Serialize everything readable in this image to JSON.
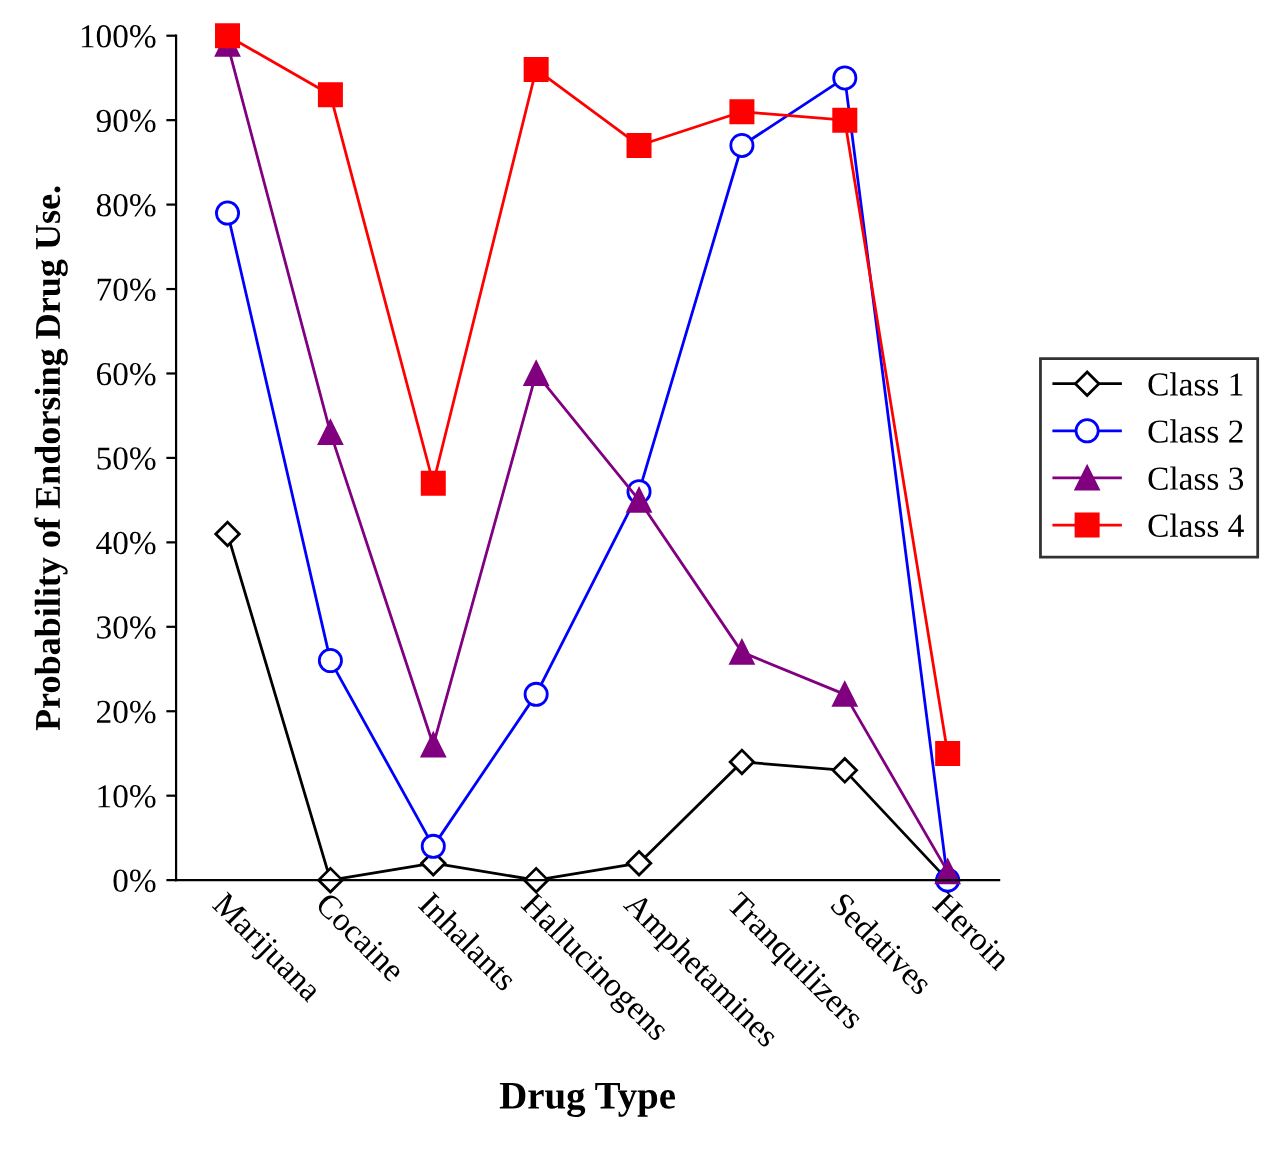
{
  "chart_data": {
    "type": "line",
    "xlabel": "Drug Type",
    "ylabel": "Probability of Endorsing Drug Use.",
    "categories": [
      "Marijuana",
      "Cocaine",
      "Inhalants",
      "Hallucinogens",
      "Amphetamines",
      "Tranquilizers",
      "Sedatives",
      "Heroin"
    ],
    "series": [
      {
        "name": "Class 1",
        "color": "#000000",
        "marker": "diamond",
        "values": [
          41,
          0,
          2,
          0,
          2,
          14,
          13,
          0
        ]
      },
      {
        "name": "Class 2",
        "color": "#0000ff",
        "marker": "circle",
        "values": [
          79,
          26,
          4,
          22,
          46,
          87,
          95,
          0
        ]
      },
      {
        "name": "Class 3",
        "color": "#800080",
        "marker": "triangle",
        "values": [
          99,
          53,
          16,
          60,
          45,
          27,
          22,
          1
        ]
      },
      {
        "name": "Class 4",
        "color": "#ff0000",
        "marker": "square",
        "values": [
          100,
          93,
          47,
          96,
          87,
          91,
          90,
          15
        ]
      }
    ],
    "ylim": [
      0,
      100
    ],
    "yticks": [
      {
        "value": 0,
        "label": "0%"
      },
      {
        "value": 10,
        "label": "10%"
      },
      {
        "value": 20,
        "label": "20%"
      },
      {
        "value": 30,
        "label": "30%"
      },
      {
        "value": 40,
        "label": "40%"
      },
      {
        "value": 50,
        "label": "50%"
      },
      {
        "value": 60,
        "label": "60%"
      },
      {
        "value": 70,
        "label": "70%"
      },
      {
        "value": 80,
        "label": "80%"
      },
      {
        "value": 90,
        "label": "90%"
      },
      {
        "value": 100,
        "label": "100%"
      }
    ],
    "grid": false,
    "legend": "right",
    "line_style": "solid"
  }
}
